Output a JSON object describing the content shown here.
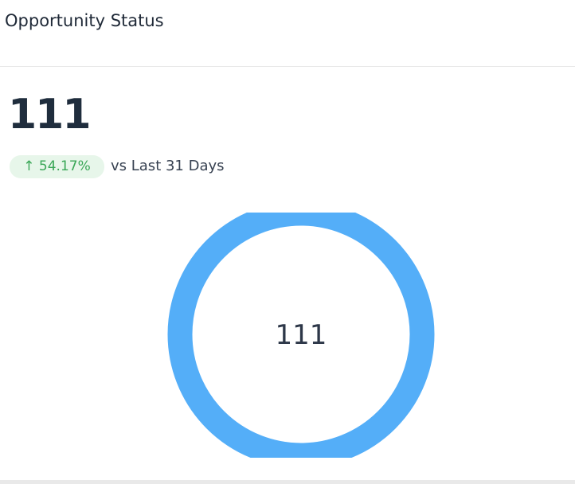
{
  "header": {
    "title": "Opportunity Status"
  },
  "metric": {
    "value": "111",
    "change": {
      "arrow": "↑",
      "value": "54.17%"
    },
    "comparison": "vs Last 31 Days"
  },
  "donut": {
    "values": [
      111
    ],
    "color": "#54aef8"
  }
}
